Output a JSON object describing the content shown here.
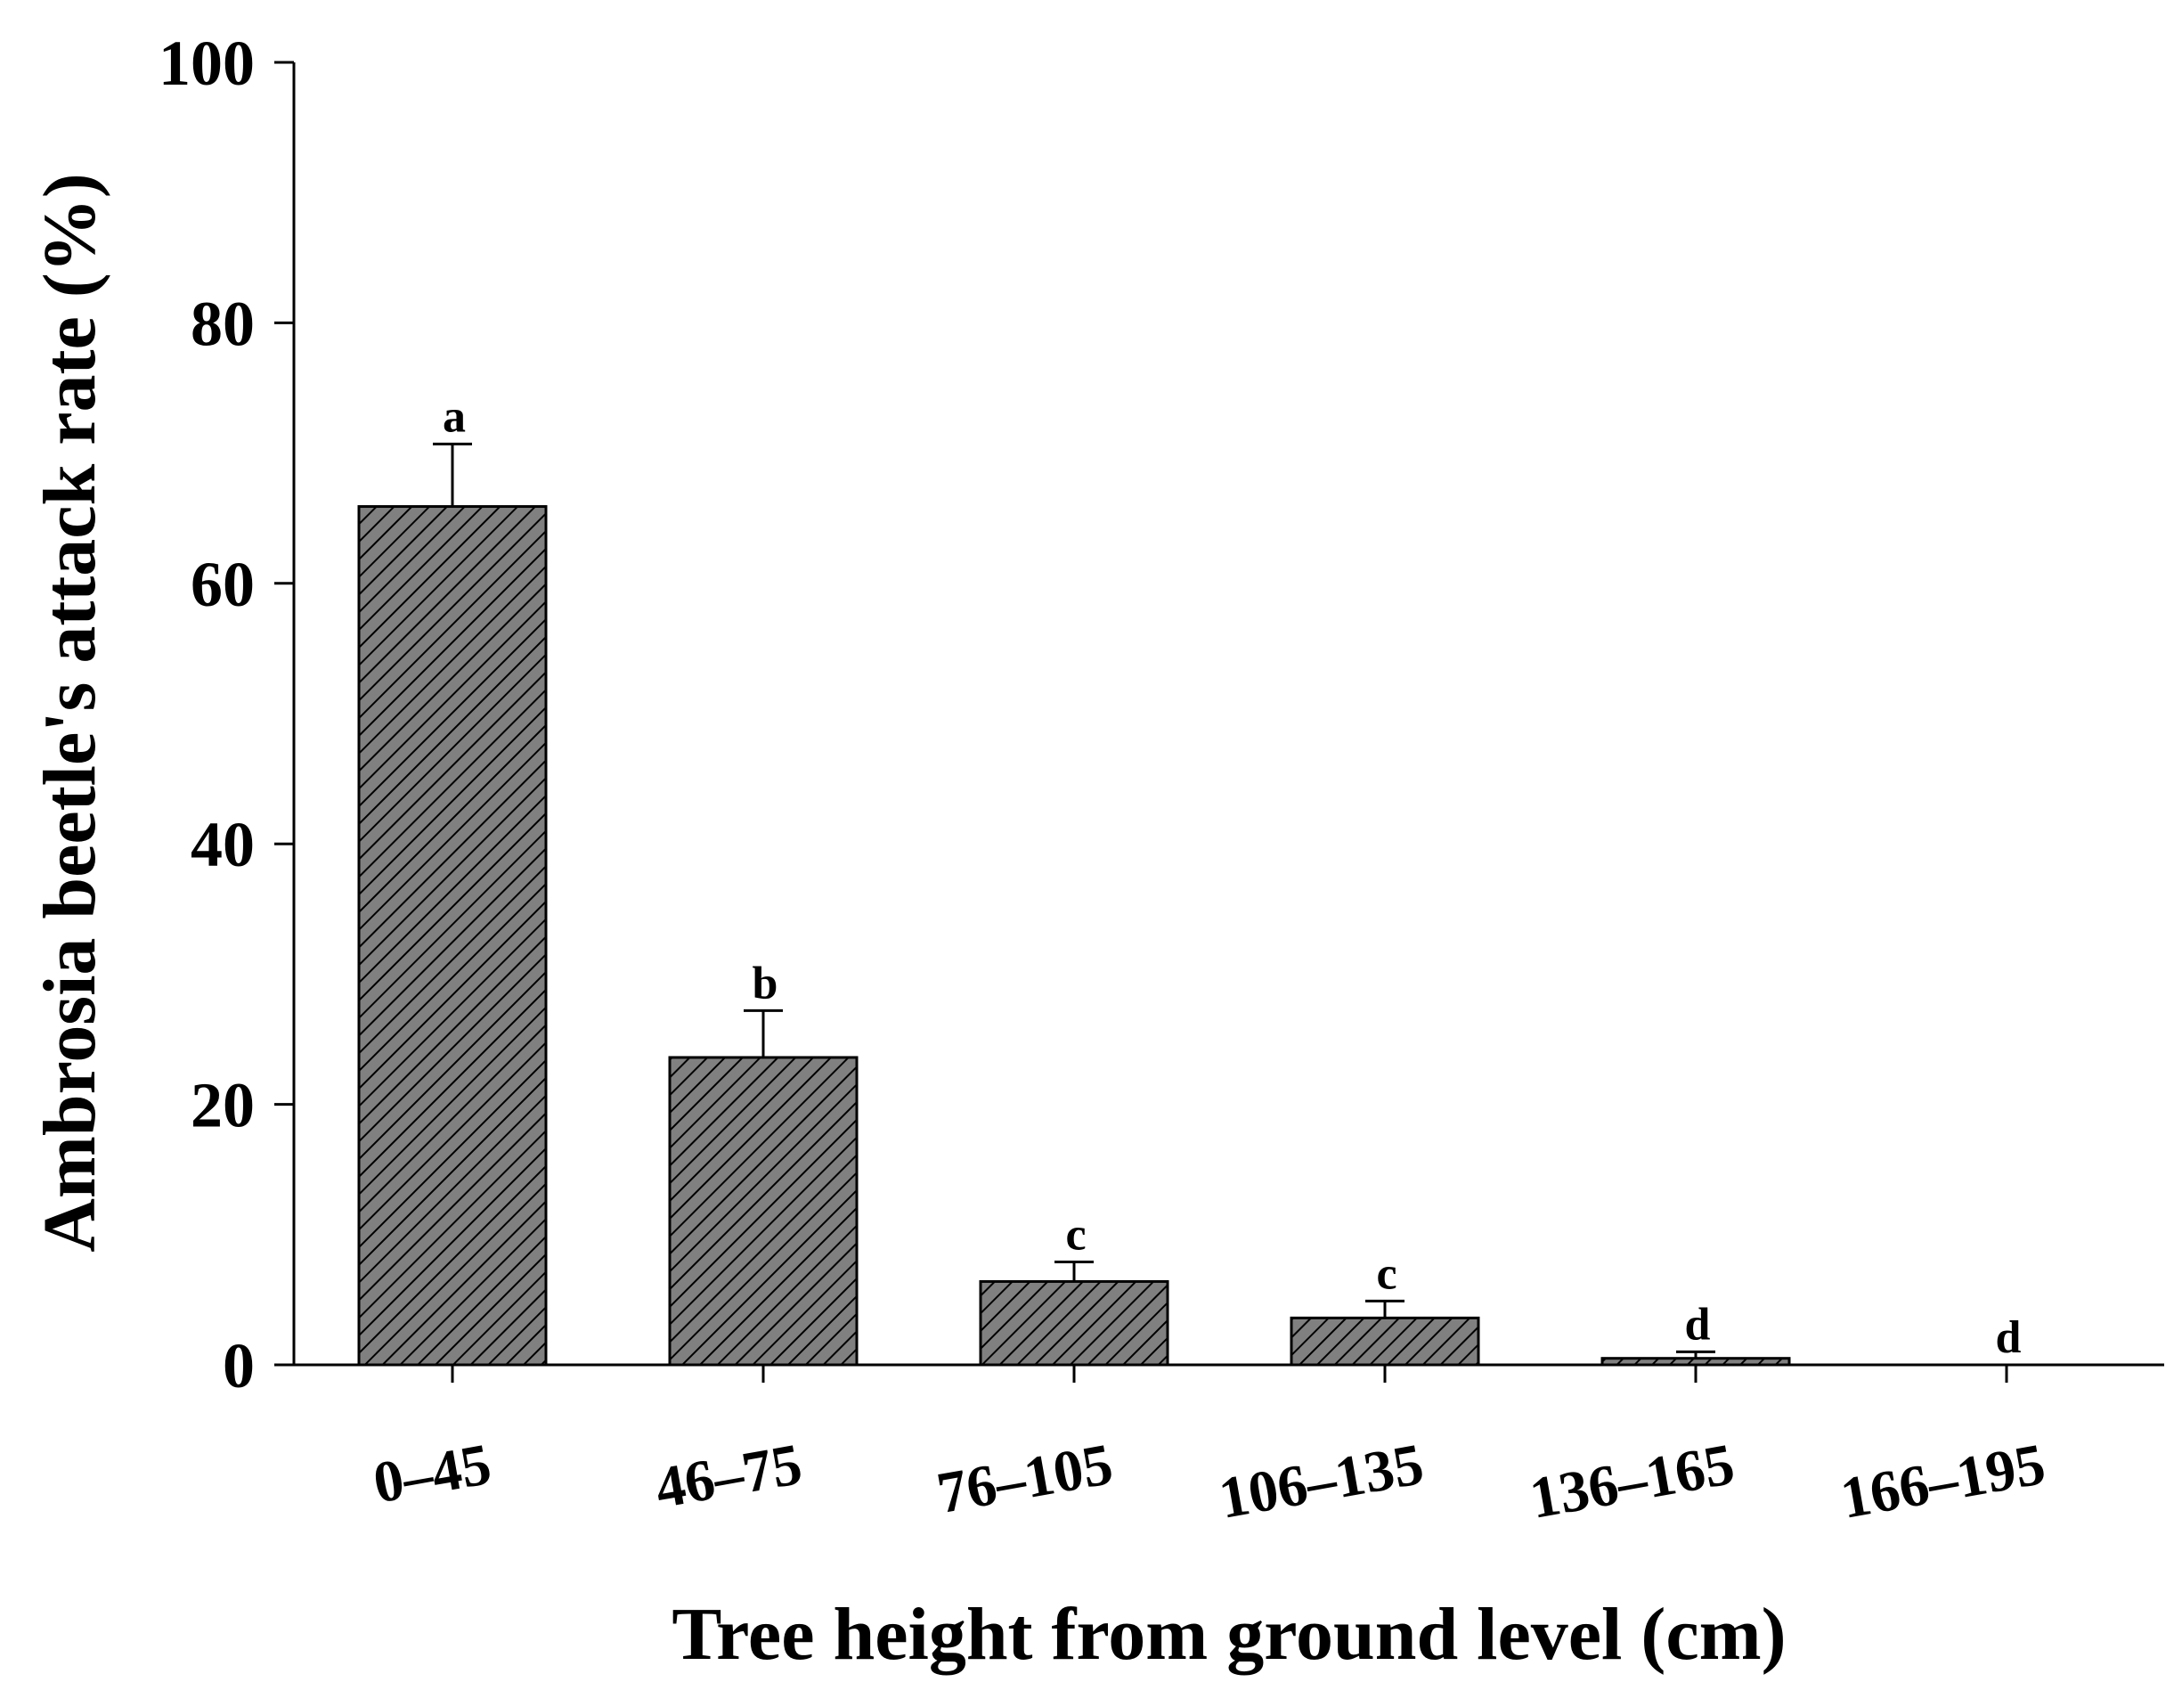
{
  "chart_data": {
    "type": "bar",
    "title": "",
    "xlabel": "Tree height from ground level (cm)",
    "ylabel": "Ambrosia beetle's attack rate (%)",
    "categories": [
      "0–45",
      "46–75",
      "76–105",
      "106–135",
      "136–165",
      "166–195"
    ],
    "values": [
      65.9,
      23.6,
      6.4,
      3.6,
      0.5,
      0.0
    ],
    "errors": [
      4.8,
      3.6,
      1.5,
      1.3,
      0.5,
      0.0
    ],
    "significance_letters": [
      "a",
      "b",
      "c",
      "c",
      "d",
      "d"
    ],
    "ylim": [
      0,
      100
    ],
    "yticks": [
      0,
      20,
      40,
      60,
      80,
      100
    ],
    "grid": false,
    "legend": "none",
    "colors": {
      "bar_fill": "#808080",
      "hatch": "#000000",
      "axis": "#000000"
    }
  }
}
